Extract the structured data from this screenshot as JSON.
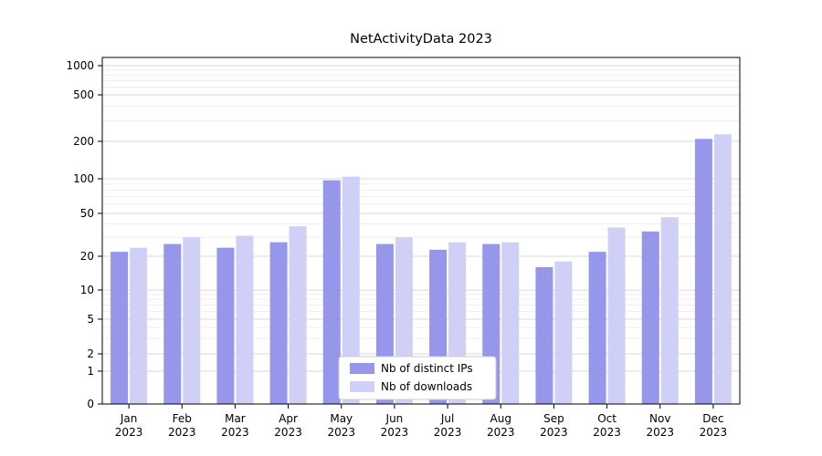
{
  "title": "NetActivityData 2023",
  "chart_data": {
    "type": "bar",
    "title": "NetActivityData 2023",
    "scale": "symlog",
    "grid": true,
    "legend_position": "lower center",
    "year": "2023",
    "categories": [
      "Jan",
      "Feb",
      "Mar",
      "Apr",
      "May",
      "Jun",
      "Jul",
      "Aug",
      "Sep",
      "Oct",
      "Nov",
      "Dec"
    ],
    "y_ticks": [
      0,
      1,
      2,
      5,
      10,
      20,
      50,
      100,
      200,
      500,
      1000
    ],
    "ylim": [
      0,
      1200
    ],
    "series": [
      {
        "name": "Nb of distinct IPs",
        "color": "#9696eb",
        "values": [
          22,
          26,
          24,
          27,
          97,
          26,
          23,
          26,
          16,
          22,
          34,
          210
        ]
      },
      {
        "name": "Nb of downloads",
        "color": "#d0d0f6",
        "values": [
          24,
          30,
          31,
          38,
          104,
          30,
          27,
          27,
          18,
          37,
          46,
          230
        ]
      }
    ]
  }
}
